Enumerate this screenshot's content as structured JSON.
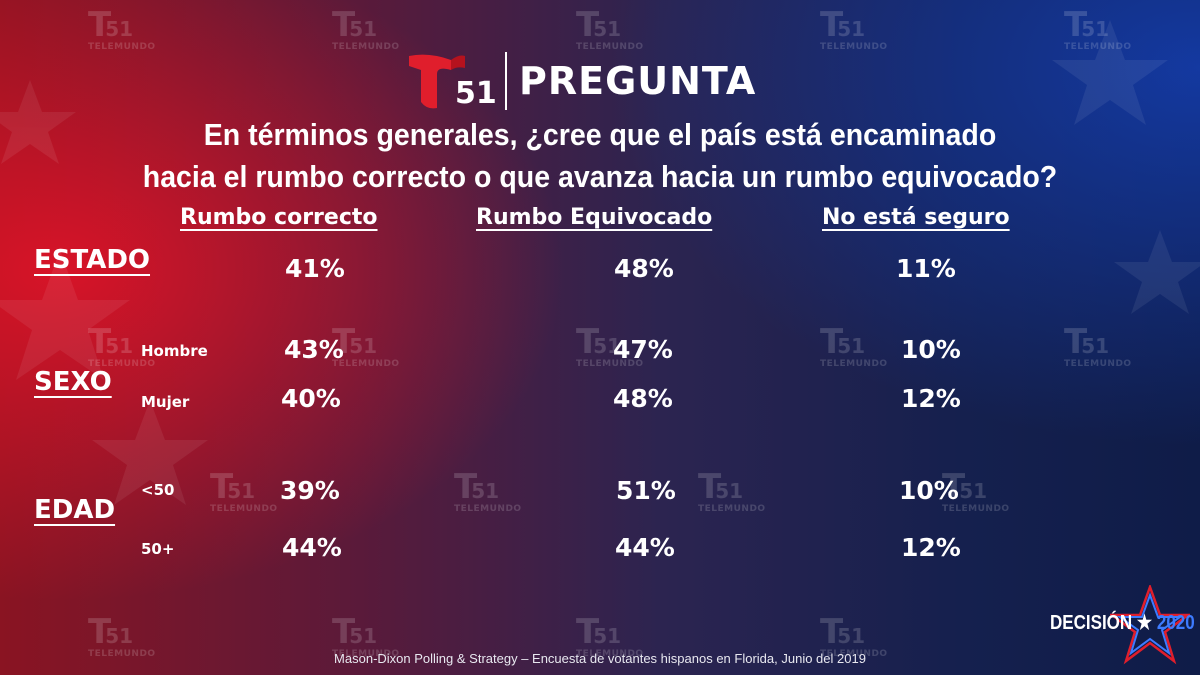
{
  "header": {
    "brand_number": "51",
    "title": "PREGUNTA"
  },
  "question": {
    "line1": "En términos generales, ¿cree que el país está encaminado",
    "line2": "hacia el rumbo correcto o que avanza hacia un rumbo equivocado?"
  },
  "columns": [
    "Rumbo correcto",
    "Rumbo Equivocado",
    "No está seguro"
  ],
  "groups": {
    "estado": {
      "label": "ESTADO"
    },
    "sexo": {
      "label": "SEXO"
    },
    "edad": {
      "label": "EDAD"
    }
  },
  "rows": [
    {
      "sub": "",
      "values": [
        "41%",
        "48%",
        "11%"
      ]
    },
    {
      "sub": "Hombre",
      "values": [
        "43%",
        "47%",
        "10%"
      ]
    },
    {
      "sub": "Mujer",
      "values": [
        "40%",
        "48%",
        "12%"
      ]
    },
    {
      "sub": "<50",
      "values": [
        "39%",
        "51%",
        "10%"
      ]
    },
    {
      "sub": "50+",
      "values": [
        "44%",
        "44%",
        "12%"
      ]
    }
  ],
  "source": "Mason-Dixon  Polling & Strategy – Encuesta de votantes hispanos en Florida, Junio del 2019",
  "badge": {
    "word": "DECISIÓN",
    "star": "★",
    "year": "2020"
  },
  "colors": {
    "telemundo_red": "#e01e2c",
    "year_blue": "#3d7bff"
  }
}
